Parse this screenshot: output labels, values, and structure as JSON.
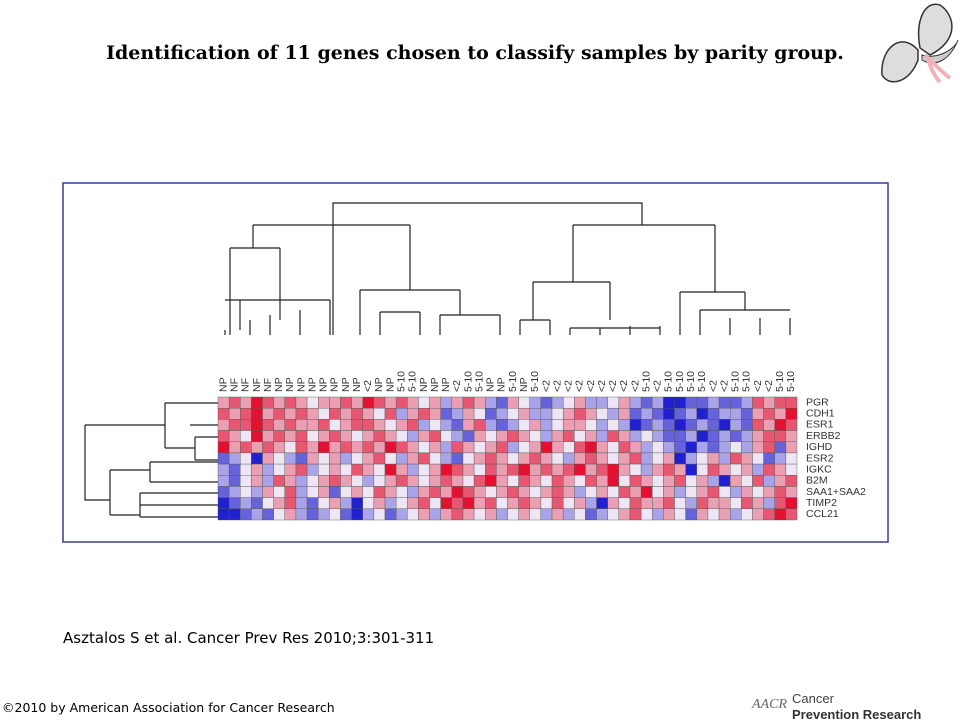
{
  "header": {
    "title": "Identification of 11 genes chosen to classify samples by parity group."
  },
  "figure": {
    "columns": [
      "NP",
      "NF",
      "NF",
      "NF",
      "NF",
      "NP",
      "NP",
      "NP",
      "NP",
      "NP",
      "NP",
      "NP",
      "NP",
      "<2",
      "NP",
      "NP",
      "5-10",
      "5-10",
      "NP",
      "NP",
      "NP",
      "<2",
      "5-10",
      "5-10",
      "NP",
      "NP",
      "5-10",
      "NP",
      "5-10",
      "<2",
      "<2",
      "<2",
      "<2",
      "<2",
      "<2",
      "<2",
      "<2",
      "<2",
      "5-10",
      "<2",
      "5-10",
      "5-10",
      "5-10",
      "5-10",
      "<2",
      "<2",
      "5-10",
      "5-10",
      "<2",
      "<2",
      "5-10",
      "5-10"
    ],
    "rows": [
      "PGR",
      "CDH1",
      "ESR1",
      "ERBB2",
      "IGHD",
      "ESR2",
      "IGKC",
      "B2M",
      "SAA1+SAA2",
      "TIMP2",
      "CCL21"
    ],
    "values": [
      [
        1,
        2,
        1,
        3,
        2,
        1,
        2,
        1,
        0,
        1,
        1,
        2,
        1,
        3,
        2,
        1,
        2,
        1,
        0,
        1,
        -1,
        1,
        2,
        1,
        -1,
        -2,
        1,
        0,
        -1,
        -2,
        -1,
        0,
        1,
        -1,
        -1,
        0,
        1,
        -1,
        -2,
        -1,
        -3,
        -3,
        -2,
        -2,
        -1,
        -2,
        -2,
        -1,
        2,
        1,
        2,
        2
      ],
      [
        2,
        1,
        2,
        3,
        1,
        2,
        1,
        2,
        1,
        0,
        2,
        1,
        2,
        1,
        0,
        2,
        -1,
        1,
        2,
        1,
        -2,
        -1,
        1,
        0,
        -2,
        -1,
        0,
        1,
        -1,
        -1,
        0,
        1,
        2,
        1,
        0,
        -1,
        1,
        -2,
        -1,
        -2,
        -3,
        -2,
        -1,
        -3,
        -2,
        -1,
        -1,
        -2,
        1,
        2,
        1,
        3
      ],
      [
        1,
        2,
        2,
        3,
        2,
        1,
        2,
        1,
        1,
        2,
        0,
        1,
        2,
        2,
        1,
        0,
        1,
        2,
        -1,
        0,
        -1,
        -2,
        1,
        2,
        -1,
        -2,
        -1,
        0,
        1,
        -1,
        0,
        1,
        1,
        0,
        -1,
        0,
        -1,
        -3,
        -2,
        -1,
        -2,
        -3,
        -2,
        -1,
        -2,
        -3,
        -1,
        -2,
        2,
        1,
        3,
        2
      ],
      [
        2,
        1,
        0,
        3,
        1,
        2,
        1,
        2,
        0,
        1,
        2,
        1,
        0,
        1,
        2,
        1,
        0,
        -1,
        1,
        2,
        0,
        -1,
        -2,
        1,
        0,
        1,
        2,
        1,
        0,
        -1,
        1,
        2,
        0,
        1,
        -1,
        2,
        1,
        -1,
        0,
        -1,
        -2,
        -2,
        -1,
        -3,
        -2,
        -1,
        -2,
        -1,
        1,
        2,
        2,
        1
      ],
      [
        3,
        1,
        2,
        1,
        2,
        1,
        0,
        2,
        1,
        3,
        1,
        2,
        1,
        2,
        1,
        3,
        2,
        1,
        0,
        1,
        -1,
        2,
        1,
        0,
        1,
        2,
        -1,
        0,
        1,
        3,
        1,
        0,
        2,
        3,
        1,
        0,
        2,
        1,
        -1,
        0,
        -1,
        -2,
        -3,
        -1,
        -2,
        -1,
        0,
        -1,
        1,
        2,
        -2,
        1
      ],
      [
        -2,
        -1,
        0,
        -3,
        1,
        0,
        -1,
        -2,
        1,
        0,
        1,
        -1,
        0,
        1,
        2,
        0,
        -1,
        1,
        2,
        0,
        -1,
        -2,
        0,
        1,
        2,
        1,
        0,
        1,
        2,
        1,
        0,
        -1,
        1,
        2,
        1,
        0,
        1,
        2,
        -1,
        0,
        1,
        -3,
        -1,
        0,
        1,
        -1,
        2,
        1,
        0,
        -2,
        -1,
        0
      ],
      [
        -1,
        -2,
        0,
        1,
        -1,
        0,
        1,
        2,
        -1,
        0,
        1,
        0,
        2,
        1,
        0,
        3,
        1,
        -1,
        0,
        1,
        3,
        2,
        1,
        0,
        2,
        1,
        2,
        3,
        1,
        2,
        1,
        2,
        3,
        1,
        2,
        3,
        1,
        0,
        -1,
        1,
        2,
        1,
        -3,
        0,
        2,
        1,
        0,
        1,
        -1,
        2,
        1,
        0
      ],
      [
        -1,
        -2,
        0,
        1,
        -1,
        2,
        1,
        -1,
        0,
        1,
        2,
        1,
        0,
        -1,
        0,
        1,
        2,
        1,
        0,
        1,
        2,
        1,
        0,
        2,
        3,
        1,
        0,
        2,
        1,
        0,
        2,
        1,
        0,
        2,
        1,
        3,
        0,
        2,
        1,
        0,
        1,
        2,
        0,
        1,
        -1,
        -3,
        1,
        0,
        2,
        -1,
        1,
        2
      ],
      [
        -2,
        -1,
        0,
        -1,
        1,
        0,
        2,
        -1,
        0,
        1,
        -2,
        0,
        1,
        0,
        2,
        1,
        0,
        -1,
        1,
        2,
        1,
        3,
        2,
        1,
        0,
        1,
        2,
        1,
        0,
        1,
        2,
        1,
        -1,
        0,
        1,
        0,
        2,
        1,
        3,
        0,
        1,
        -1,
        0,
        1,
        2,
        0,
        -1,
        1,
        0,
        1,
        2,
        1
      ],
      [
        -3,
        -2,
        -1,
        -2,
        0,
        1,
        2,
        -1,
        -2,
        0,
        1,
        -1,
        -3,
        0,
        1,
        -1,
        0,
        1,
        2,
        0,
        3,
        2,
        3,
        1,
        2,
        0,
        1,
        2,
        1,
        0,
        2,
        0,
        1,
        -1,
        -3,
        1,
        0,
        2,
        1,
        1,
        2,
        0,
        -1,
        2,
        1,
        1,
        0,
        2,
        1,
        -1,
        2,
        3
      ],
      [
        -3,
        -3,
        -2,
        -1,
        -2,
        0,
        1,
        -1,
        -2,
        -1,
        0,
        -2,
        -3,
        -1,
        0,
        -2,
        -1,
        0,
        1,
        -1,
        1,
        2,
        1,
        0,
        1,
        -1,
        0,
        1,
        0,
        -1,
        1,
        -1,
        0,
        -2,
        -1,
        0,
        1,
        2,
        0,
        -1,
        1,
        0,
        -2,
        1,
        0,
        1,
        -1,
        0,
        1,
        2,
        3,
        2
      ]
    ],
    "vlim": [
      -3,
      3
    ]
  },
  "citation": "Asztalos S et al. Cancer Prev Res 2010;3:301-311",
  "copyright": "©2010 by American Association for Cancer Research",
  "logo": {
    "mark": "AACR",
    "line1": "Cancer",
    "line2": "Prevention Research"
  }
}
